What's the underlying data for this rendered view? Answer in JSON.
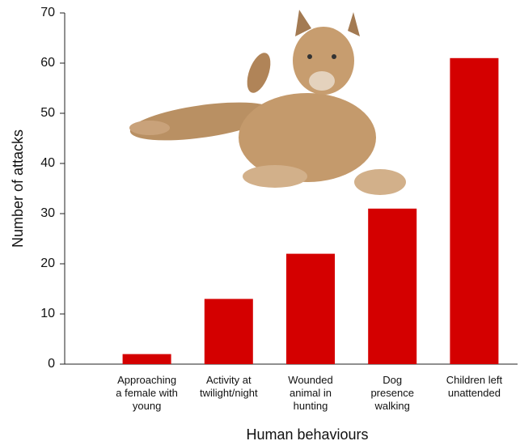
{
  "chart_data": {
    "type": "bar",
    "x_label": "Human behaviours",
    "y_label": "Number of attacks",
    "categories": [
      "Approaching\na female with\nyoung",
      "Activity at\ntwilight/night",
      "Wounded\nanimal in\nhunting",
      "Dog\npresence\nwalking",
      "Children left\nunattended"
    ],
    "values": [
      2,
      13,
      22,
      31,
      61
    ],
    "color": "#d40000",
    "ylim": [
      0,
      70
    ],
    "yticks": [
      0,
      10,
      20,
      30,
      40,
      50,
      60,
      70
    ],
    "grid": false
  }
}
